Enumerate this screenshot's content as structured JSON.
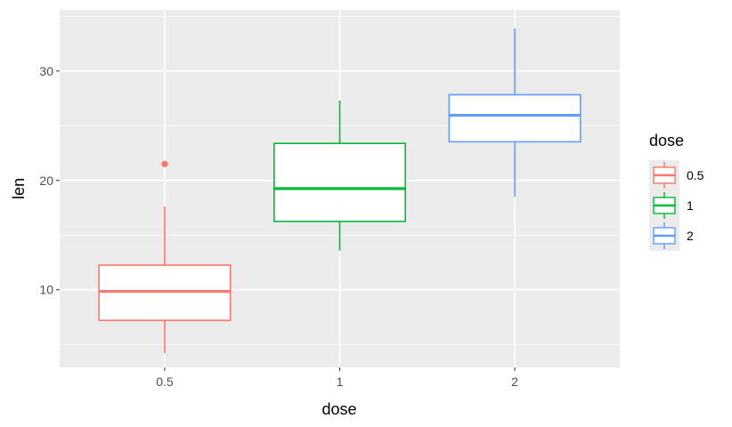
{
  "chart_data": {
    "type": "boxplot",
    "xlabel": "dose",
    "ylabel": "len",
    "categories": [
      "0.5",
      "1",
      "2"
    ],
    "ylim": [
      2.9,
      35.6
    ],
    "y_ticks": [
      10,
      20,
      30
    ],
    "grid": true,
    "legend": {
      "title": "dose",
      "placement": "right",
      "entries": [
        "0.5",
        "1",
        "2"
      ]
    },
    "series": [
      {
        "category": "0.5",
        "color": "#F8766D",
        "min": 4.2,
        "q1": 7.2,
        "median": 9.85,
        "q3": 12.25,
        "max": 17.6,
        "outliers": [
          21.5
        ]
      },
      {
        "category": "1",
        "color": "#00BA38",
        "min": 13.6,
        "q1": 16.25,
        "median": 19.25,
        "q3": 23.38,
        "max": 27.3,
        "outliers": []
      },
      {
        "category": "2",
        "color": "#619CFF",
        "min": 18.5,
        "q1": 23.53,
        "median": 25.95,
        "q3": 27.83,
        "max": 33.9,
        "outliers": []
      }
    ],
    "panel_background": "#EBEBEB",
    "grid_color": "#FFFFFF"
  }
}
